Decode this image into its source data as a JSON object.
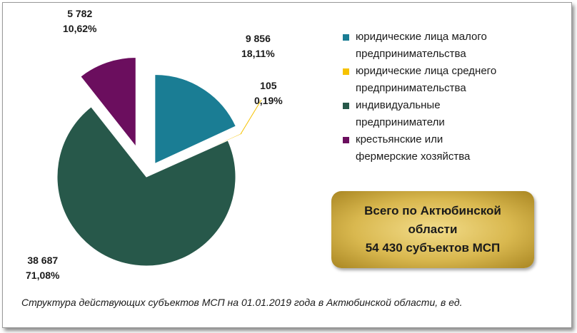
{
  "chart_data": {
    "type": "pie",
    "exploded": true,
    "slices": [
      {
        "name": "юридические лица малого предпринимательства",
        "value_label": "9 856",
        "percent_label": "18,11%",
        "value": 9856,
        "percent": 18.11,
        "color": "#1a7d94"
      },
      {
        "name": "юридические лица среднего предпринимательства",
        "value_label": "105",
        "percent_label": "0,19%",
        "value": 105,
        "percent": 0.19,
        "color": "#f6c200"
      },
      {
        "name": "индивидуальные предприниматели",
        "value_label": "38 687",
        "percent_label": "71,08%",
        "value": 38687,
        "percent": 71.08,
        "color": "#27584a"
      },
      {
        "name": "крестьянские или фермерские хозяйства",
        "value_label": "5 782",
        "percent_label": "10,62%",
        "value": 5782,
        "percent": 10.62,
        "color": "#6b0e5e"
      }
    ],
    "legend": {
      "position": "right",
      "entries": [
        {
          "line1": "юридические лица малого",
          "line2": "предпринимательства",
          "color": "#1a7d94"
        },
        {
          "line1": "юридические лица среднего",
          "line2": "предпринимательства",
          "color": "#f6c200"
        },
        {
          "line1": "индивидуальные",
          "line2": "предприниматели",
          "color": "#27584a"
        },
        {
          "line1": "крестьянские или",
          "line2": "фермерские хозяйства",
          "color": "#6b0e5e"
        }
      ]
    }
  },
  "total_box": {
    "line1": "Всего по Актюбинской",
    "line2": "области",
    "line3": "54 430 субъектов МСП"
  },
  "caption": "Структура действующих субъектов МСП на 01.01.2019  года в Актюбинской области, в ед."
}
